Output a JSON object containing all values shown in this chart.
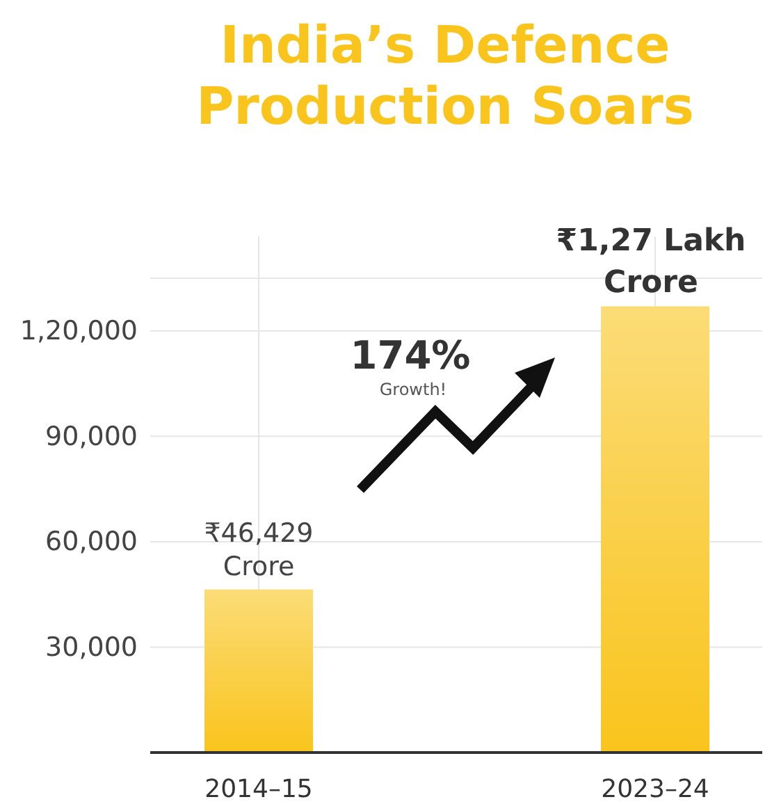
{
  "chart_data": {
    "type": "bar",
    "title": "India’s Defence Production Soars",
    "categories": [
      "2014–15",
      "2023–24"
    ],
    "values": [
      46429,
      127000
    ],
    "value_labels": [
      "₹46,429 Crore",
      null
    ],
    "color": "#f9c41c",
    "ylim": [
      0,
      135000
    ],
    "yticks": [
      {
        "value": 30000,
        "label": "30,000"
      },
      {
        "value": 60000,
        "label": "60,000"
      },
      {
        "value": 90000,
        "label": "90,000"
      },
      {
        "value": 120000,
        "label": "1,20,000"
      }
    ],
    "grid": true,
    "annotations": [
      "174%",
      "Growth!",
      {
        "text": "₹1,27 Lakh Crore",
        "x": "2023–24",
        "y": 127000
      }
    ]
  }
}
